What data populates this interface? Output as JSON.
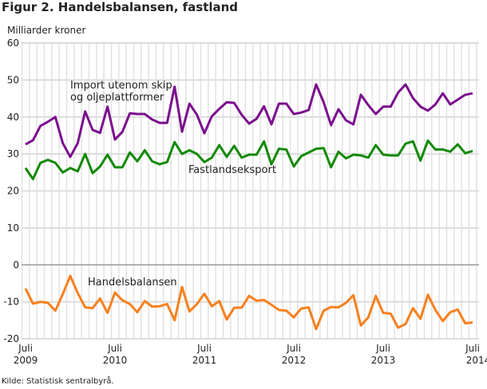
{
  "title": "Figur 2. Handelsbalansen, fastland",
  "source": "Kilde: Statistisk sentralbyrå.",
  "chart_data": {
    "type": "line",
    "title": "Figur 2. Handelsbalansen, fastland",
    "ylabel": "Milliarder kroner",
    "ylim": [
      -20,
      60
    ],
    "yticks": [
      60,
      50,
      40,
      30,
      20,
      10,
      0,
      -10,
      -20
    ],
    "grid": true,
    "x_start": "2009-07",
    "x_frequency": "monthly",
    "xtick_labels": [
      {
        "month": "Juli",
        "year": "2009",
        "index": 0
      },
      {
        "month": "Juli",
        "year": "2010",
        "index": 12
      },
      {
        "month": "Juli",
        "year": "2011",
        "index": 24
      },
      {
        "month": "Juli",
        "year": "2012",
        "index": 36
      },
      {
        "month": "Juli",
        "year": "2013",
        "index": 48
      },
      {
        "month": "Juli",
        "year": "2014*",
        "index": 60
      }
    ],
    "series": [
      {
        "name": "Import utenom skip og oljeplattformer",
        "label_lines": [
          "Import utenom skip",
          "og oljeplattformer"
        ],
        "color": "#7b0f8e",
        "values": [
          32.6,
          33.7,
          37.6,
          38.7,
          40,
          32.9,
          29.2,
          32.9,
          41.5,
          36.5,
          35.7,
          42.8,
          33.9,
          36,
          41,
          40.8,
          40.8,
          39.3,
          38.4,
          38.4,
          48.2,
          36,
          43.6,
          40.6,
          35.6,
          40.2,
          42.2,
          44,
          43.8,
          40.6,
          38.2,
          39.5,
          42.9,
          38,
          43.6,
          43.6,
          40.8,
          41.2,
          41.9,
          48.8,
          44,
          37.8,
          42.1,
          39.1,
          38,
          46,
          43.2,
          40.8,
          42.8,
          42.8,
          46.6,
          48.8,
          45.1,
          42.8,
          41.7,
          43.4,
          46.4,
          43.4,
          44.7,
          46,
          46.4
        ]
      },
      {
        "name": "Fastlandseksport",
        "label_lines": [
          "Fastlandseksport"
        ],
        "color": "#138a07",
        "values": [
          26.2,
          23.2,
          27.6,
          28.4,
          27.6,
          25,
          26.2,
          25.3,
          30,
          24.8,
          26.6,
          29.8,
          26.4,
          26.4,
          30.4,
          28,
          31,
          28,
          27.2,
          27.8,
          33.2,
          30,
          31,
          30,
          27.8,
          29,
          32.4,
          29.2,
          32.2,
          29,
          29.8,
          29.8,
          33.4,
          27.2,
          31.4,
          31.2,
          26.6,
          29.4,
          30.4,
          31.4,
          31.6,
          26.4,
          30.6,
          28.8,
          29.8,
          29.6,
          29,
          32.4,
          29.8,
          29.6,
          29.6,
          32.8,
          33.4,
          28.2,
          33.6,
          31.2,
          31.2,
          30.6,
          32.6,
          30.2,
          30.8
        ]
      },
      {
        "name": "Handelsbalansen",
        "label_lines": [
          "Handelsbalansen"
        ],
        "color": "#f7801e",
        "values": [
          -6.4,
          -10.5,
          -10,
          -10.3,
          -12.4,
          -7.9,
          -3,
          -7.6,
          -11.5,
          -11.7,
          -9.1,
          -13,
          -7.5,
          -9.6,
          -10.6,
          -12.8,
          -9.8,
          -11.3,
          -11.2,
          -10.6,
          -15,
          -6,
          -12.6,
          -10.6,
          -7.8,
          -11.2,
          -9.8,
          -14.8,
          -11.6,
          -11.6,
          -8.4,
          -9.7,
          -9.5,
          -10.8,
          -12.2,
          -12.4,
          -14.2,
          -11.8,
          -11.5,
          -17.4,
          -12.4,
          -11.4,
          -11.5,
          -10.3,
          -8.2,
          -16.4,
          -14.2,
          -8.4,
          -13,
          -13.2,
          -17,
          -16,
          -11.7,
          -14.6,
          -8.1,
          -12.2,
          -15.2,
          -12.8,
          -12.1,
          -15.8,
          -15.6
        ]
      }
    ]
  }
}
